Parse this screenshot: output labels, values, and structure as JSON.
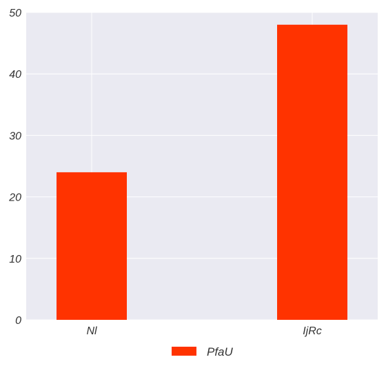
{
  "chart_data": {
    "type": "bar",
    "categories": [
      "Nl",
      "IjRc"
    ],
    "series": [
      {
        "name": "PfaU",
        "values": [
          24,
          48
        ],
        "color": "#ff3300"
      }
    ],
    "ylim": [
      0,
      50
    ],
    "yticks": [
      0,
      10,
      20,
      30,
      40,
      50
    ],
    "grid": true,
    "background": "#eaeaf2",
    "legend_position": "bottom-center"
  }
}
